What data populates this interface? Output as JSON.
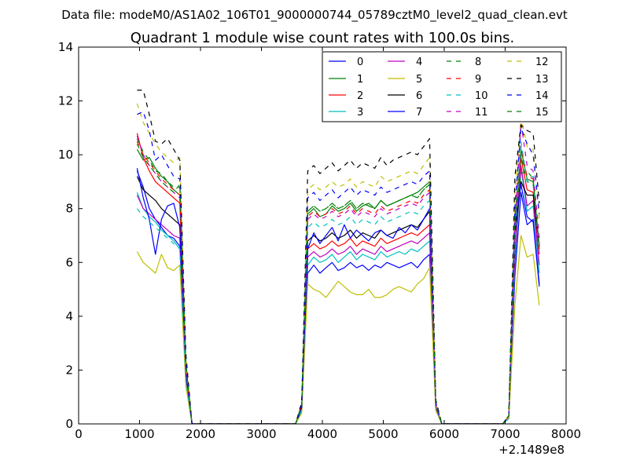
{
  "figure": {
    "supertitle": "Data file: modeM0/AS1A02_106T01_9000000744_05789cztM0_level2_quad_clean.evt",
    "title": "Quadrant 1 module wise count rates with 100.0s bins.",
    "x_offset_label": "+2.1489e8"
  },
  "chart_data": {
    "type": "line",
    "title": "Quadrant 1 module wise count rates with 100.0s bins.",
    "xlabel": "",
    "ylabel": "",
    "xlim": [
      0,
      8000
    ],
    "ylim": [
      0,
      14
    ],
    "x_offset": 214890000,
    "xticks": [
      0,
      1000,
      2000,
      3000,
      4000,
      5000,
      6000,
      7000,
      8000
    ],
    "xtick_labels": [
      "0",
      "1000",
      "2000",
      "3000",
      "4000",
      "5000",
      "6000",
      "7000",
      "8000"
    ],
    "yticks": [
      0,
      2,
      4,
      6,
      8,
      10,
      12,
      14
    ],
    "ytick_labels": [
      "0",
      "2",
      "4",
      "6",
      "8",
      "10",
      "12",
      "14"
    ],
    "grid": false,
    "legend_position": "top-right",
    "legend_columns": 4,
    "x": [
      960,
      1060,
      1160,
      1260,
      1360,
      1460,
      1560,
      1660,
      1760,
      1860,
      1960,
      2060,
      2160,
      2260,
      2360,
      2460,
      2560,
      2660,
      2760,
      2860,
      2960,
      3060,
      3160,
      3260,
      3360,
      3460,
      3560,
      3660,
      3760,
      3860,
      3960,
      4060,
      4160,
      4260,
      4360,
      4460,
      4560,
      4660,
      4760,
      4860,
      4960,
      5060,
      5160,
      5260,
      5360,
      5460,
      5560,
      5660,
      5760,
      5860,
      5960,
      6060,
      6160,
      6260,
      6360,
      6460,
      6560,
      6660,
      6760,
      6860,
      6960,
      7060,
      7160,
      7260,
      7360,
      7460,
      7560
    ],
    "active_segments": [
      [
        960,
        1760
      ],
      [
        3660,
        5760
      ],
      [
        7060,
        7560
      ]
    ],
    "series": [
      {
        "name": "0",
        "color": "#0000ff",
        "dash": "solid",
        "values": [
          9.4,
          8.8,
          8.0,
          7.6,
          7.3,
          7.0,
          6.9,
          6.6,
          1.8,
          0,
          0,
          0,
          0,
          0,
          0,
          0,
          0,
          0,
          0,
          0,
          0,
          0,
          0,
          0,
          0,
          0,
          0,
          0.5,
          5.6,
          5.9,
          5.6,
          5.8,
          6.0,
          5.7,
          5.8,
          6.0,
          5.8,
          5.9,
          5.7,
          5.9,
          5.8,
          6.0,
          5.9,
          5.8,
          5.9,
          6.0,
          5.8,
          6.1,
          6.3,
          0.6,
          0,
          0,
          0,
          0,
          0,
          0,
          0,
          0,
          0,
          0,
          0,
          0.2,
          5.5,
          8.6,
          7.4,
          7.6,
          5.2
        ]
      },
      {
        "name": "1",
        "color": "#008000",
        "dash": "solid",
        "values": [
          10.2,
          9.8,
          9.9,
          9.5,
          9.2,
          9.0,
          8.7,
          8.5,
          2.2,
          0,
          0,
          0,
          0,
          0,
          0,
          0,
          0,
          0,
          0,
          0,
          0,
          0,
          0,
          0,
          0,
          0,
          0,
          0.7,
          7.8,
          8.0,
          7.7,
          7.8,
          8.1,
          7.9,
          8.0,
          8.2,
          7.9,
          8.1,
          8.2,
          8.0,
          8.3,
          8.1,
          8.2,
          8.3,
          8.4,
          8.5,
          8.6,
          8.8,
          9.0,
          0.7,
          0,
          0,
          0,
          0,
          0,
          0,
          0,
          0,
          0,
          0,
          0,
          0.3,
          7.6,
          10.2,
          9.1,
          9.0,
          6.6
        ]
      },
      {
        "name": "2",
        "color": "#ff0000",
        "dash": "solid",
        "values": [
          10.8,
          9.9,
          9.4,
          9.0,
          8.8,
          8.6,
          8.4,
          8.2,
          2.0,
          0,
          0,
          0,
          0,
          0,
          0,
          0,
          0,
          0,
          0,
          0,
          0,
          0,
          0,
          0,
          0,
          0,
          0,
          0.6,
          6.5,
          6.7,
          6.5,
          6.6,
          6.8,
          6.6,
          6.7,
          6.9,
          6.6,
          6.8,
          6.7,
          6.6,
          6.9,
          6.7,
          6.8,
          6.9,
          7.0,
          7.1,
          7.0,
          7.2,
          7.4,
          0.7,
          0,
          0,
          0,
          0,
          0,
          0,
          0,
          0,
          0,
          0,
          0,
          0.3,
          6.9,
          9.9,
          8.7,
          8.6,
          6.3
        ]
      },
      {
        "name": "3",
        "color": "#00bfbf",
        "dash": "solid",
        "values": [
          8.6,
          8.0,
          7.7,
          7.5,
          7.2,
          7.0,
          6.8,
          6.5,
          1.7,
          0,
          0,
          0,
          0,
          0,
          0,
          0,
          0,
          0,
          0,
          0,
          0,
          0,
          0,
          0,
          0,
          0,
          0,
          0.5,
          5.9,
          6.2,
          6.0,
          6.1,
          6.3,
          6.0,
          6.2,
          6.4,
          6.1,
          6.3,
          6.2,
          6.1,
          6.4,
          6.2,
          6.3,
          6.4,
          6.3,
          6.5,
          6.4,
          6.6,
          6.8,
          0.6,
          0,
          0,
          0,
          0,
          0,
          0,
          0,
          0,
          0,
          0,
          0,
          0.2,
          5.9,
          9.5,
          7.9,
          8.1,
          5.6
        ]
      },
      {
        "name": "4",
        "color": "#bf00bf",
        "dash": "solid",
        "values": [
          8.5,
          8.0,
          7.8,
          7.6,
          7.4,
          7.2,
          7.0,
          6.9,
          1.8,
          0,
          0,
          0,
          0,
          0,
          0,
          0,
          0,
          0,
          0,
          0,
          0,
          0,
          0,
          0,
          0,
          0,
          0,
          0.6,
          6.2,
          6.4,
          6.2,
          6.3,
          6.5,
          6.3,
          6.4,
          6.6,
          6.3,
          6.5,
          6.4,
          6.3,
          6.6,
          6.4,
          6.5,
          6.6,
          6.7,
          6.8,
          6.7,
          6.9,
          7.1,
          0.6,
          0,
          0,
          0,
          0,
          0,
          0,
          0,
          0,
          0,
          0,
          0,
          0.2,
          6.2,
          9.6,
          8.1,
          8.3,
          5.9
        ]
      },
      {
        "name": "5",
        "color": "#bfbf00",
        "dash": "solid",
        "values": [
          6.4,
          6.0,
          5.8,
          5.6,
          6.3,
          5.8,
          5.7,
          5.9,
          1.4,
          0,
          0,
          0,
          0,
          0,
          0,
          0,
          0,
          0,
          0,
          0,
          0,
          0,
          0,
          0,
          0,
          0,
          0,
          0.4,
          5.2,
          5.0,
          4.9,
          4.7,
          5.0,
          5.3,
          5.1,
          4.9,
          4.8,
          4.8,
          5.0,
          4.7,
          4.7,
          4.8,
          5.0,
          5.1,
          5.0,
          4.9,
          5.2,
          5.4,
          5.8,
          0.5,
          0,
          0,
          0,
          0,
          0,
          0,
          0,
          0,
          0,
          0,
          0,
          0.2,
          4.4,
          7.0,
          6.2,
          6.3,
          4.4
        ]
      },
      {
        "name": "6",
        "color": "#000000",
        "dash": "solid",
        "values": [
          9.2,
          8.7,
          8.5,
          8.3,
          8.0,
          7.8,
          7.6,
          7.4,
          1.9,
          0,
          0,
          0,
          0,
          0,
          0,
          0,
          0,
          0,
          0,
          0,
          0,
          0,
          0,
          0,
          0,
          0,
          0,
          0.6,
          6.8,
          7.0,
          6.8,
          6.9,
          7.1,
          6.9,
          7.0,
          7.2,
          6.9,
          7.1,
          7.0,
          6.9,
          7.2,
          7.0,
          7.1,
          7.2,
          7.3,
          7.4,
          7.3,
          7.6,
          7.9,
          0.7,
          0,
          0,
          0,
          0,
          0,
          0,
          0,
          0,
          0,
          0,
          0,
          0.3,
          7.0,
          9.0,
          8.5,
          8.5,
          6.6
        ]
      },
      {
        "name": "7",
        "color": "#0000ff",
        "dash": "solid",
        "values": [
          9.5,
          8.4,
          7.6,
          6.3,
          7.6,
          8.1,
          8.2,
          7.3,
          1.9,
          0,
          0,
          0,
          0,
          0,
          0,
          0,
          0,
          0,
          0,
          0,
          0,
          0,
          0,
          0,
          0,
          0,
          0,
          0.6,
          6.5,
          7.1,
          6.7,
          7.0,
          7.3,
          6.8,
          7.4,
          6.9,
          7.2,
          7.0,
          6.8,
          7.1,
          7.2,
          7.0,
          6.9,
          7.3,
          7.1,
          7.4,
          7.2,
          7.6,
          8.0,
          0.7,
          0,
          0,
          0,
          0,
          0,
          0,
          0,
          0,
          0,
          0,
          0,
          0.3,
          7.4,
          8.9,
          7.7,
          7.5,
          5.1
        ]
      },
      {
        "name": "8",
        "color": "#008000",
        "dash": "dashed",
        "values": [
          10.6,
          10.1,
          9.8,
          9.4,
          9.3,
          9.0,
          8.8,
          8.8,
          2.2,
          0,
          0,
          0,
          0,
          0,
          0,
          0,
          0,
          0,
          0,
          0,
          0,
          0,
          0,
          0,
          0,
          0,
          0,
          0.7,
          7.9,
          8.1,
          7.9,
          8.0,
          8.2,
          8.0,
          8.1,
          8.3,
          8.0,
          8.2,
          8.1,
          8.0,
          8.3,
          8.1,
          8.2,
          8.3,
          8.4,
          8.5,
          8.4,
          8.7,
          8.9,
          0.7,
          0,
          0,
          0,
          0,
          0,
          0,
          0,
          0,
          0,
          0,
          0,
          0.3,
          7.7,
          10.0,
          9.0,
          8.9,
          6.5
        ]
      },
      {
        "name": "9",
        "color": "#ff0000",
        "dash": "dashed",
        "values": [
          10.5,
          10.0,
          9.7,
          9.4,
          9.1,
          8.9,
          8.7,
          8.5,
          2.1,
          0,
          0,
          0,
          0,
          0,
          0,
          0,
          0,
          0,
          0,
          0,
          0,
          0,
          0,
          0,
          0,
          0,
          0,
          0.7,
          7.7,
          7.9,
          7.7,
          7.8,
          8.0,
          7.8,
          7.9,
          8.1,
          7.8,
          8.0,
          7.9,
          7.8,
          8.1,
          7.9,
          8.0,
          8.1,
          8.2,
          8.3,
          8.2,
          8.5,
          8.7,
          0.7,
          0,
          0,
          0,
          0,
          0,
          0,
          0,
          0,
          0,
          0,
          0,
          0.3,
          7.5,
          10.3,
          9.2,
          9.1,
          6.7
        ]
      },
      {
        "name": "10",
        "color": "#00bfbf",
        "dash": "dashed",
        "values": [
          8.0,
          7.7,
          7.5,
          7.3,
          7.1,
          6.9,
          6.7,
          6.5,
          1.6,
          0,
          0,
          0,
          0,
          0,
          0,
          0,
          0,
          0,
          0,
          0,
          0,
          0,
          0,
          0,
          0,
          0,
          0,
          0.5,
          7.3,
          7.5,
          7.3,
          7.4,
          7.6,
          7.4,
          7.5,
          7.7,
          7.4,
          7.6,
          7.5,
          7.4,
          7.7,
          7.5,
          7.6,
          7.7,
          7.8,
          7.9,
          7.8,
          8.1,
          8.3,
          0.6,
          0,
          0,
          0,
          0,
          0,
          0,
          0,
          0,
          0,
          0,
          0,
          0.2,
          6.8,
          10.5,
          9.0,
          9.2,
          6.4
        ]
      },
      {
        "name": "11",
        "color": "#bf00bf",
        "dash": "dashed",
        "values": [
          10.7,
          10.0,
          9.6,
          9.3,
          9.0,
          8.8,
          8.6,
          8.4,
          2.1,
          0,
          0,
          0,
          0,
          0,
          0,
          0,
          0,
          0,
          0,
          0,
          0,
          0,
          0,
          0,
          0,
          0,
          0,
          0.7,
          7.6,
          7.8,
          7.6,
          7.7,
          7.9,
          7.7,
          7.8,
          8.0,
          7.7,
          7.9,
          7.8,
          7.7,
          8.0,
          7.8,
          7.9,
          8.0,
          8.1,
          8.2,
          8.1,
          8.4,
          8.6,
          0.7,
          0,
          0,
          0,
          0,
          0,
          0,
          0,
          0,
          0,
          0,
          0,
          0.3,
          7.4,
          11.2,
          9.6,
          9.4,
          6.9
        ]
      },
      {
        "name": "12",
        "color": "#bfbf00",
        "dash": "dashed",
        "values": [
          11.9,
          11.2,
          10.8,
          10.4,
          10.1,
          9.9,
          9.7,
          9.9,
          2.4,
          0,
          0,
          0,
          0,
          0,
          0,
          0,
          0,
          0,
          0,
          0,
          0,
          0,
          0,
          0,
          0,
          0,
          0,
          0.8,
          8.7,
          8.9,
          8.7,
          8.8,
          9.0,
          8.8,
          8.9,
          9.1,
          8.8,
          9.0,
          8.9,
          8.8,
          9.2,
          9.0,
          9.1,
          9.2,
          9.3,
          9.4,
          9.3,
          9.6,
          9.9,
          0.8,
          0,
          0,
          0,
          0,
          0,
          0,
          0,
          0,
          0,
          0,
          0,
          0.3,
          8.6,
          11.4,
          10.3,
          10.2,
          7.6
        ]
      },
      {
        "name": "13",
        "color": "#000000",
        "dash": "dashed",
        "values": [
          12.4,
          12.4,
          11.5,
          10.5,
          10.4,
          10.6,
          10.2,
          9.8,
          2.6,
          0,
          0,
          0,
          0,
          0,
          0,
          0,
          0,
          0,
          0,
          0,
          0,
          0,
          0,
          0,
          0,
          0,
          0,
          0.8,
          9.4,
          9.6,
          9.3,
          9.5,
          9.7,
          9.4,
          9.6,
          9.8,
          9.5,
          9.7,
          9.6,
          9.5,
          9.9,
          9.6,
          9.8,
          9.9,
          10.0,
          10.1,
          10.0,
          10.3,
          10.6,
          0.9,
          0,
          0,
          0,
          0,
          0,
          0,
          0,
          0,
          0,
          0,
          0,
          0.3,
          9.2,
          11.1,
          10.9,
          10.8,
          8.2
        ]
      },
      {
        "name": "14",
        "color": "#0000ff",
        "dash": "dashed",
        "values": [
          11.5,
          11.6,
          10.9,
          9.8,
          10.0,
          9.6,
          9.2,
          9.1,
          2.3,
          0,
          0,
          0,
          0,
          0,
          0,
          0,
          0,
          0,
          0,
          0,
          0,
          0,
          0,
          0,
          0,
          0,
          0,
          0.7,
          8.4,
          8.6,
          8.3,
          8.5,
          8.7,
          8.4,
          8.6,
          8.8,
          8.5,
          8.7,
          8.6,
          8.5,
          8.8,
          8.6,
          8.7,
          8.8,
          8.9,
          9.0,
          8.9,
          9.2,
          9.4,
          0.8,
          0,
          0,
          0,
          0,
          0,
          0,
          0,
          0,
          0,
          0,
          0,
          0.3,
          8.1,
          11.0,
          10.4,
          10.0,
          7.8
        ]
      },
      {
        "name": "15",
        "color": "#008000",
        "dash": "dashed",
        "values": [
          10.4,
          9.9,
          9.6,
          9.3,
          9.0,
          8.8,
          8.6,
          8.9,
          2.2,
          0,
          0,
          0,
          0,
          0,
          0,
          0,
          0,
          0,
          0,
          0,
          0,
          0,
          0,
          0,
          0,
          0,
          0,
          0.7,
          7.9,
          8.1,
          7.9,
          8.0,
          8.2,
          8.0,
          8.1,
          8.3,
          8.0,
          8.2,
          8.1,
          8.0,
          8.3,
          8.1,
          8.2,
          8.3,
          8.4,
          8.5,
          8.4,
          8.7,
          8.9,
          0.7,
          0,
          0,
          0,
          0,
          0,
          0,
          0,
          0,
          0,
          0,
          0,
          0.3,
          7.7,
          9.3,
          9.4,
          9.1,
          6.5
        ]
      }
    ]
  }
}
